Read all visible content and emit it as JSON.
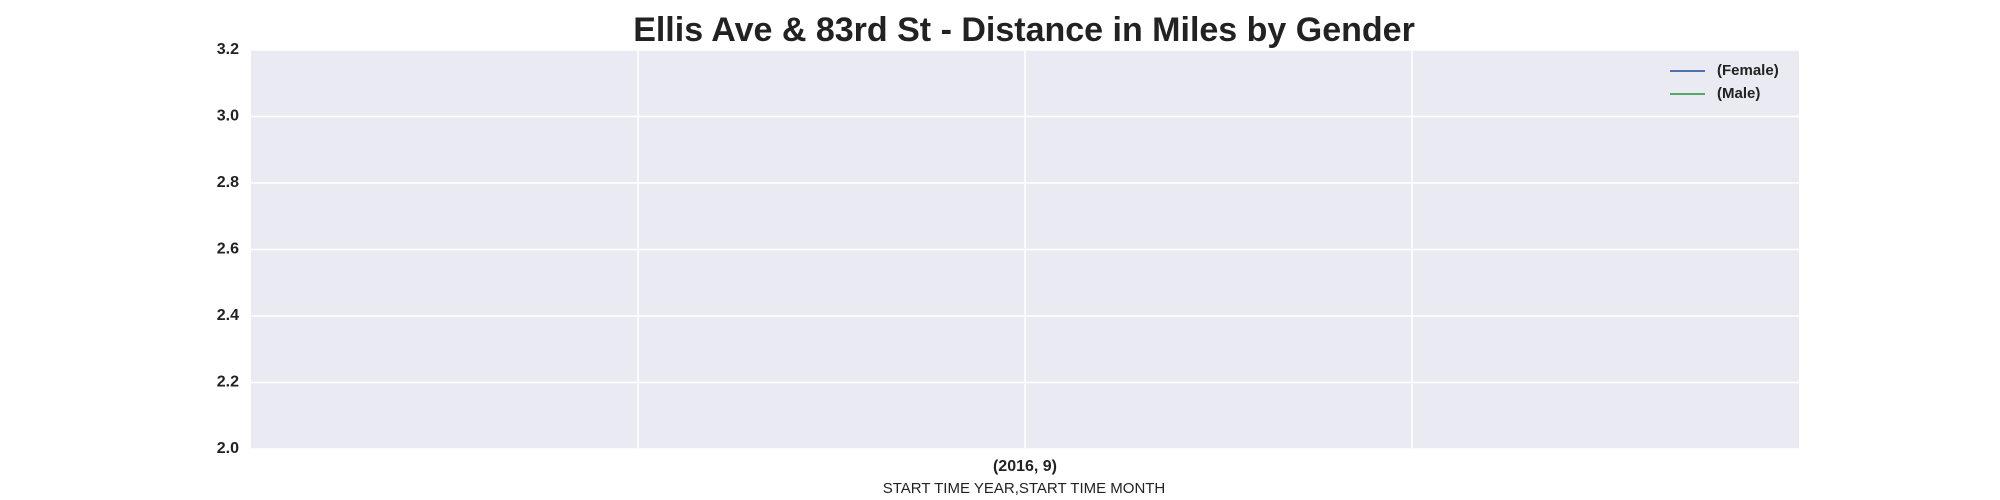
{
  "chart_data": {
    "type": "line",
    "title": "Ellis Ave & 83rd St - Distance in Miles by Gender",
    "xlabel": "START TIME YEAR,START TIME MONTH",
    "categories": [
      "(2016, 9)"
    ],
    "series": [
      {
        "name": "(Female)",
        "color": "#4c72b0",
        "values": [
          null
        ]
      },
      {
        "name": "(Male)",
        "color": "#55a868",
        "values": [
          null
        ]
      }
    ],
    "ylim": [
      2.0,
      3.2
    ],
    "yticks": [
      {
        "value": 2.0,
        "label": "2.0"
      },
      2.2,
      2.4,
      2.6,
      2.8,
      {
        "value": 3.0,
        "label": "3.0"
      },
      3.2
    ],
    "grid": true,
    "legend": "upper right"
  }
}
